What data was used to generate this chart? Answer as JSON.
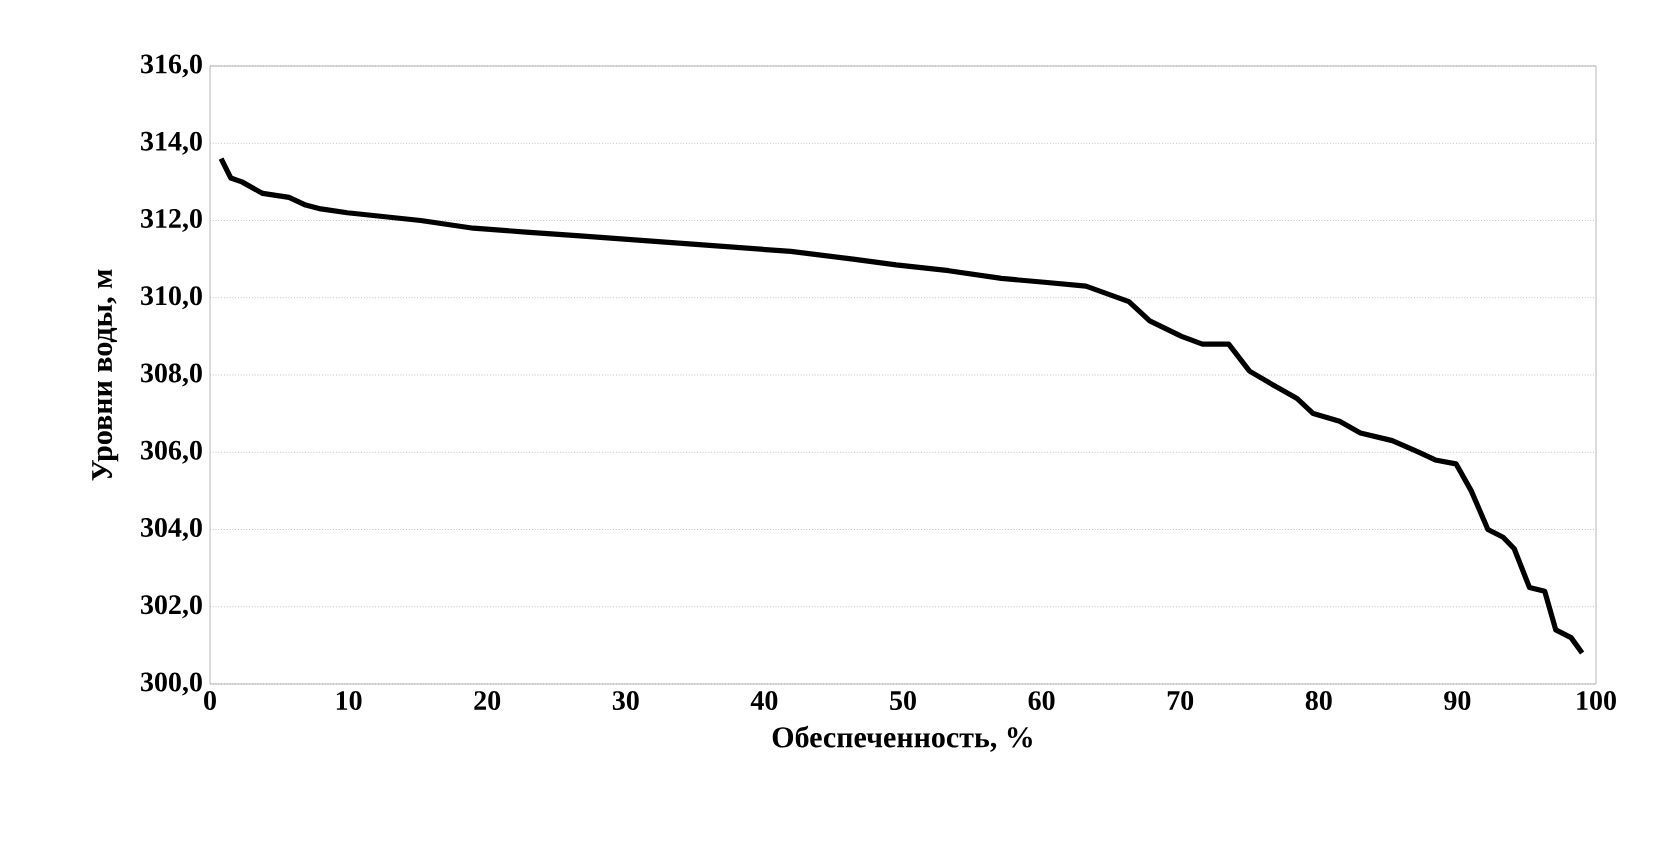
{
  "chart_data": {
    "type": "line",
    "xlabel": "Обеспеченность, %",
    "ylabel": "Уровни воды, м",
    "x": [
      0.8,
      1.5,
      2.3,
      3.8,
      5.7,
      6.9,
      8.0,
      9.9,
      15.2,
      19.0,
      22.8,
      26.7,
      34.3,
      41.9,
      46.4,
      49.5,
      53.3,
      57.1,
      60.2,
      63.2,
      66.3,
      67.8,
      70.1,
      71.6,
      73.5,
      75.0,
      76.9,
      78.4,
      79.6,
      81.5,
      83.0,
      85.3,
      87.2,
      88.4,
      89.9,
      91.0,
      92.2,
      93.3,
      94.1,
      95.2,
      96.3,
      97.1,
      98.2,
      99.0
    ],
    "series": [
      {
        "color": "#000000",
        "values": [
          313.6,
          313.1,
          313.0,
          312.7,
          312.6,
          312.4,
          312.3,
          312.2,
          312.0,
          311.8,
          311.7,
          311.6,
          311.4,
          311.2,
          311.0,
          310.85,
          310.7,
          310.5,
          310.4,
          310.3,
          309.9,
          309.4,
          309.0,
          308.8,
          308.8,
          308.1,
          307.7,
          307.4,
          307.0,
          306.8,
          306.5,
          306.3,
          306.0,
          305.8,
          305.7,
          305.0,
          304.0,
          303.8,
          303.5,
          302.5,
          302.4,
          301.4,
          301.2,
          300.8
        ]
      }
    ],
    "xlim": [
      0,
      100
    ],
    "xticks": [
      0,
      10,
      20,
      30,
      40,
      50,
      60,
      70,
      80,
      90,
      100
    ],
    "ylim": [
      300,
      316
    ],
    "yticks": [
      {
        "value": 300,
        "label": "300,0"
      },
      {
        "value": 302,
        "label": "302,0"
      },
      {
        "value": 304,
        "label": "304,0"
      },
      {
        "value": 306,
        "label": "306,0"
      },
      {
        "value": 308,
        "label": "308,0"
      },
      {
        "value": 310,
        "label": "310,0"
      },
      {
        "value": 312,
        "label": "312,0"
      },
      {
        "value": 314,
        "label": "314,0"
      },
      {
        "value": 316,
        "label": "316,0"
      }
    ],
    "grid": "y",
    "marker": "none",
    "line_style": "solid"
  }
}
